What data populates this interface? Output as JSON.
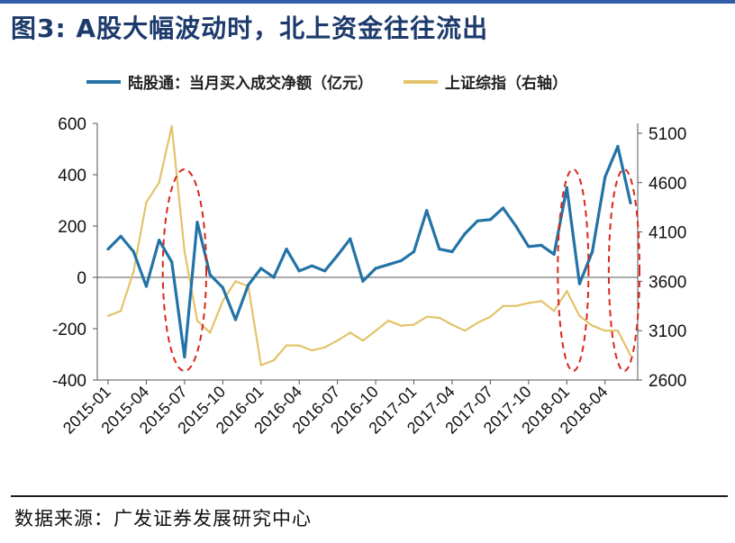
{
  "colors": {
    "title": "#1c3a6b",
    "top_rule": "#2f5da8",
    "series_blue": "#2373a6",
    "series_gold": "#e3c36a",
    "ellipse": "#d9261c",
    "axis": "#555555"
  },
  "title": "图3:  A股大幅波动时，北上资金往往流出",
  "source": "数据来源：广发证券发展研究中心",
  "chart_data": {
    "type": "line",
    "title": "图3:  A股大幅波动时，北上资金往往流出",
    "legend_position": "top",
    "grid": false,
    "x_tick_labels": [
      "2015-01",
      "2015-04",
      "2015-07",
      "2015-10",
      "2016-01",
      "2016-04",
      "2016-07",
      "2016-10",
      "2017-01",
      "2017-04",
      "2017-07",
      "2017-10",
      "2018-01",
      "2018-04"
    ],
    "x_range": [
      "2015-01",
      "2018-06"
    ],
    "y_left": {
      "ticks": [
        "600",
        "400",
        "200",
        "0",
        "-200",
        "-400"
      ],
      "range": [
        -400,
        600
      ]
    },
    "y_right": {
      "ticks": [
        "5100",
        "4600",
        "4100",
        "3600",
        "3100",
        "2600"
      ],
      "range": [
        2600,
        5200
      ]
    },
    "series": [
      {
        "name": "陆股通：当月买入成交净额（亿元）",
        "axis": "left",
        "color": "#2373a6",
        "points": [
          [
            "2015-01",
            110
          ],
          [
            "2015-02",
            160
          ],
          [
            "2015-03",
            100
          ],
          [
            "2015-04",
            -35
          ],
          [
            "2015-05",
            145
          ],
          [
            "2015-06",
            60
          ],
          [
            "2015-07",
            -310
          ],
          [
            "2015-08",
            215
          ],
          [
            "2015-09",
            10
          ],
          [
            "2015-10",
            -40
          ],
          [
            "2015-11",
            -165
          ],
          [
            "2015-12",
            -30
          ],
          [
            "2016-01",
            35
          ],
          [
            "2016-02",
            0
          ],
          [
            "2016-03",
            110
          ],
          [
            "2016-04",
            25
          ],
          [
            "2016-05",
            45
          ],
          [
            "2016-06",
            25
          ],
          [
            "2016-07",
            85
          ],
          [
            "2016-08",
            150
          ],
          [
            "2016-09",
            -15
          ],
          [
            "2016-10",
            35
          ],
          [
            "2016-11",
            50
          ],
          [
            "2016-12",
            65
          ],
          [
            "2017-01",
            100
          ],
          [
            "2017-02",
            260
          ],
          [
            "2017-03",
            110
          ],
          [
            "2017-04",
            100
          ],
          [
            "2017-05",
            170
          ],
          [
            "2017-06",
            220
          ],
          [
            "2017-07",
            225
          ],
          [
            "2017-08",
            270
          ],
          [
            "2017-09",
            200
          ],
          [
            "2017-10",
            120
          ],
          [
            "2017-11",
            125
          ],
          [
            "2017-12",
            90
          ],
          [
            "2018-01",
            350
          ],
          [
            "2018-02",
            -25
          ],
          [
            "2018-03",
            100
          ],
          [
            "2018-04",
            390
          ],
          [
            "2018-05",
            510
          ],
          [
            "2018-06",
            290
          ]
        ]
      },
      {
        "name": "上证综指（右轴）",
        "axis": "right",
        "color": "#e3c36a",
        "points": [
          [
            "2015-01",
            3250
          ],
          [
            "2015-02",
            3300
          ],
          [
            "2015-03",
            3700
          ],
          [
            "2015-04",
            4400
          ],
          [
            "2015-05",
            4600
          ],
          [
            "2015-06",
            5170
          ],
          [
            "2015-07",
            3900
          ],
          [
            "2015-08",
            3200
          ],
          [
            "2015-09",
            3080
          ],
          [
            "2015-10",
            3400
          ],
          [
            "2015-11",
            3600
          ],
          [
            "2015-12",
            3550
          ],
          [
            "2016-01",
            2750
          ],
          [
            "2016-02",
            2800
          ],
          [
            "2016-03",
            2950
          ],
          [
            "2016-04",
            2950
          ],
          [
            "2016-05",
            2900
          ],
          [
            "2016-06",
            2930
          ],
          [
            "2016-07",
            3000
          ],
          [
            "2016-08",
            3080
          ],
          [
            "2016-09",
            3000
          ],
          [
            "2016-10",
            3100
          ],
          [
            "2016-11",
            3200
          ],
          [
            "2016-12",
            3150
          ],
          [
            "2017-01",
            3160
          ],
          [
            "2017-02",
            3240
          ],
          [
            "2017-03",
            3230
          ],
          [
            "2017-04",
            3160
          ],
          [
            "2017-05",
            3100
          ],
          [
            "2017-06",
            3180
          ],
          [
            "2017-07",
            3240
          ],
          [
            "2017-08",
            3350
          ],
          [
            "2017-09",
            3350
          ],
          [
            "2017-10",
            3380
          ],
          [
            "2017-11",
            3400
          ],
          [
            "2017-12",
            3300
          ],
          [
            "2018-01",
            3500
          ],
          [
            "2018-02",
            3250
          ],
          [
            "2018-03",
            3150
          ],
          [
            "2018-04",
            3100
          ],
          [
            "2018-05",
            3100
          ],
          [
            "2018-06",
            2850
          ]
        ]
      }
    ],
    "annotations": [
      {
        "type": "dashed-ellipse",
        "from": "2015-06",
        "to": "2015-08",
        "color": "#d9261c"
      },
      {
        "type": "dashed-ellipse",
        "from": "2018-01",
        "to": "2018-02",
        "color": "#d9261c"
      },
      {
        "type": "dashed-ellipse",
        "from": "2018-05",
        "to": "2018-06",
        "color": "#d9261c"
      }
    ]
  }
}
